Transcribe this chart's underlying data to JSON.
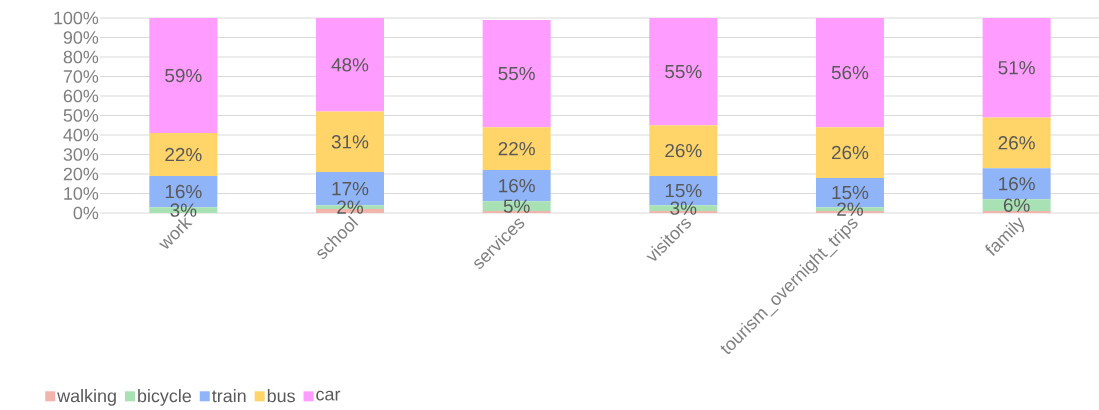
{
  "chart_data": {
    "type": "bar",
    "stacked": true,
    "categories": [
      "work",
      "school",
      "services",
      "visitors",
      "tourism_overnight_trips",
      "family"
    ],
    "series": [
      {
        "name": "walking",
        "color": "#f4b4ae",
        "values": [
          0,
          2,
          1,
          1,
          1,
          1
        ]
      },
      {
        "name": "bicycle",
        "color": "#a8e2b4",
        "values": [
          3,
          2,
          5,
          3,
          2,
          6
        ],
        "value_labels": [
          "3%",
          "2%",
          "5%",
          "3%",
          "2%",
          "6%"
        ]
      },
      {
        "name": "train",
        "color": "#8fb4f8",
        "values": [
          16,
          17,
          16,
          15,
          15,
          16
        ],
        "value_labels": [
          "16%",
          "17%",
          "16%",
          "15%",
          "15%",
          "16%"
        ]
      },
      {
        "name": "bus",
        "color": "#ffd56a",
        "values": [
          22,
          31,
          22,
          26,
          26,
          26
        ],
        "value_labels": [
          "22%",
          "31%",
          "22%",
          "26%",
          "26%",
          "26%"
        ]
      },
      {
        "name": "car",
        "color": "#ff9cff",
        "values": [
          59,
          48,
          55,
          55,
          56,
          51
        ],
        "value_labels": [
          "59%",
          "48%",
          "55%",
          "55%",
          "56%",
          "51%"
        ]
      }
    ],
    "ylim": [
      0,
      100
    ],
    "yticks": [
      {
        "value": 0,
        "label": "0%"
      },
      {
        "value": 10,
        "label": "10%"
      },
      {
        "value": 20,
        "label": "20%"
      },
      {
        "value": 30,
        "label": "30%"
      },
      {
        "value": 40,
        "label": "40%"
      },
      {
        "value": 50,
        "label": "50%"
      },
      {
        "value": 60,
        "label": "60%"
      },
      {
        "value": 70,
        "label": "70%"
      },
      {
        "value": 80,
        "label": "80%"
      },
      {
        "value": 90,
        "label": "90%"
      },
      {
        "value": 100,
        "label": "100%"
      }
    ],
    "grid": "y",
    "legend": "bottom left"
  }
}
